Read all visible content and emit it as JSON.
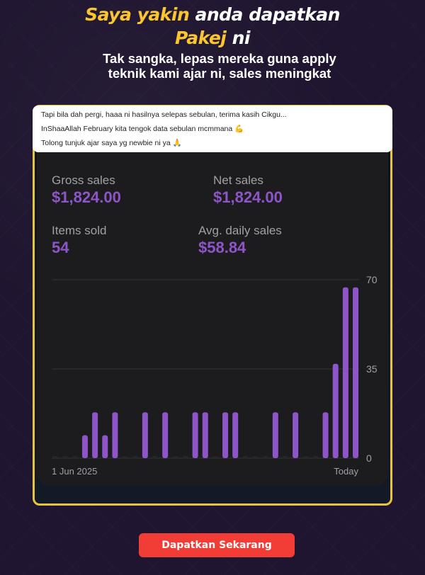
{
  "header": {
    "title_yellow_1": "Saya yakin",
    "title_white_1": "anda dapatkan",
    "title_yellow_2": "Pakej",
    "title_white_2": "ni",
    "subtitle": "Tak sangka, lepas mereka guna apply teknik kami ajar ni, sales meningkat"
  },
  "comments": [
    "Tapi bila dah pergi, haaa ni hasilnya selepas sebulan, terima kasih Cikgu...",
    "InShaaAllah February kita tengok data sebulan mcmmana 💪",
    "Tolong tunjuk ajar saya yg newbie ni ya 🙏"
  ],
  "stats": {
    "gross_label": "Gross sales",
    "gross_value": "$1,824.00",
    "net_label": "Net sales",
    "net_value": "$1,824.00",
    "items_label": "Items sold",
    "items_value": "54",
    "avg_label": "Avg. daily sales",
    "avg_value": "$58.84"
  },
  "chart_data": {
    "type": "bar",
    "x_start_label": "1 Jun 2025",
    "x_end_label": "Today",
    "ylim": [
      0,
      70
    ],
    "yticks": [
      "0",
      "35",
      "70"
    ],
    "color": "#8e55c9",
    "values": [
      0,
      0,
      0,
      9,
      18,
      9,
      18,
      0,
      0,
      18,
      0,
      18,
      0,
      0,
      18,
      18,
      0,
      18,
      18,
      0,
      0,
      0,
      18,
      0,
      18,
      0,
      0,
      18,
      37,
      67,
      67
    ]
  },
  "cta": {
    "label": "Dapatkan Sekarang"
  }
}
